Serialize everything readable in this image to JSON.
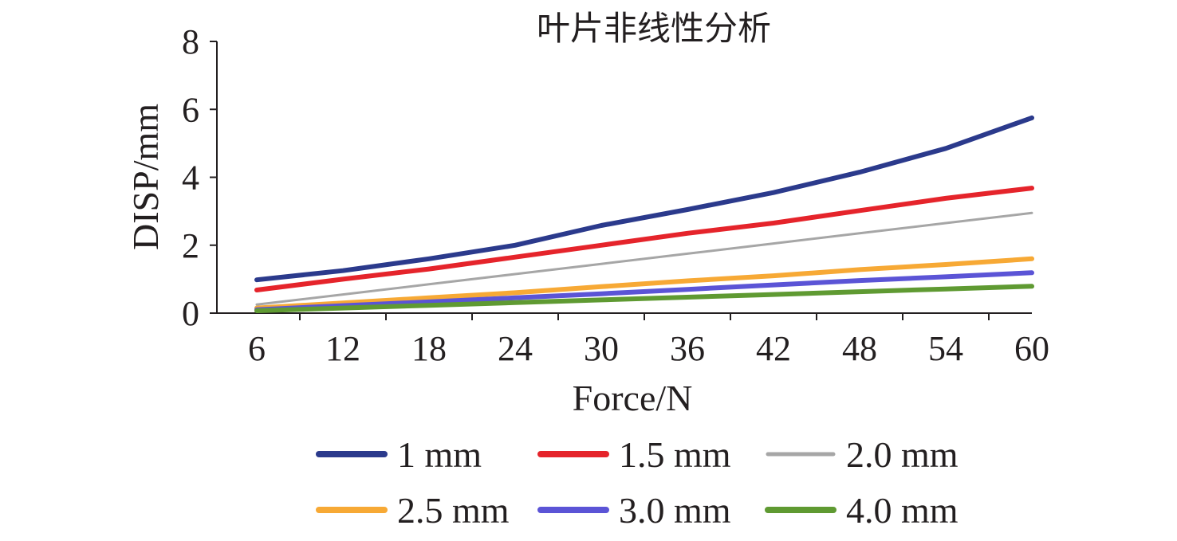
{
  "chart_data": {
    "type": "line",
    "title": "叶片非线性分析",
    "xlabel": "Force/N",
    "ylabel": "DISP/mm",
    "x": [
      6,
      12,
      18,
      24,
      30,
      36,
      42,
      48,
      54,
      60
    ],
    "xlim": [
      6,
      60
    ],
    "ylim": [
      0,
      8
    ],
    "xticks": [
      "6",
      "12",
      "18",
      "24",
      "30",
      "36",
      "42",
      "48",
      "54",
      "60"
    ],
    "yticks": [
      "0",
      "2",
      "4",
      "6",
      "8"
    ],
    "grid": false,
    "legend_position": "bottom",
    "series": [
      {
        "name": "1 mm",
        "color": "#2b3a8c",
        "values": [
          0.98,
          1.25,
          1.6,
          2.0,
          2.58,
          3.05,
          3.55,
          4.15,
          4.85,
          5.75
        ]
      },
      {
        "name": "1.5 mm",
        "color": "#e5242b",
        "values": [
          0.68,
          1.0,
          1.3,
          1.65,
          2.0,
          2.35,
          2.65,
          3.02,
          3.38,
          3.68
        ]
      },
      {
        "name": "2.0 mm",
        "color": "#a6a6a6",
        "values": [
          0.25,
          0.55,
          0.85,
          1.15,
          1.45,
          1.75,
          2.05,
          2.35,
          2.65,
          2.95
        ]
      },
      {
        "name": "2.5 mm",
        "color": "#f7a935",
        "values": [
          0.15,
          0.3,
          0.45,
          0.6,
          0.78,
          0.95,
          1.1,
          1.28,
          1.43,
          1.6
        ]
      },
      {
        "name": "3.0 mm",
        "color": "#5b54d6",
        "values": [
          0.1,
          0.22,
          0.33,
          0.45,
          0.57,
          0.7,
          0.83,
          0.96,
          1.07,
          1.19
        ]
      },
      {
        "name": "4.0 mm",
        "color": "#5f9a32",
        "values": [
          0.07,
          0.15,
          0.23,
          0.31,
          0.39,
          0.47,
          0.55,
          0.63,
          0.71,
          0.79
        ]
      }
    ]
  }
}
